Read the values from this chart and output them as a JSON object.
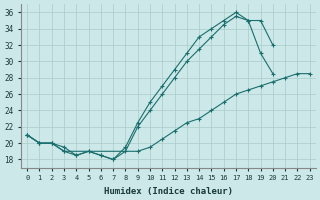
{
  "xlabel": "Humidex (Indice chaleur)",
  "bg_color": "#cce8e8",
  "grid_color": "#aacccc",
  "line_color": "#1a6e6e",
  "xlim": [
    -0.5,
    23.5
  ],
  "ylim": [
    17,
    37
  ],
  "xticks": [
    0,
    1,
    2,
    3,
    4,
    5,
    6,
    7,
    8,
    9,
    10,
    11,
    12,
    13,
    14,
    15,
    16,
    17,
    18,
    19,
    20,
    21,
    22,
    23
  ],
  "yticks": [
    18,
    20,
    22,
    24,
    26,
    28,
    30,
    32,
    34,
    36
  ],
  "line1_x": [
    0,
    1,
    2,
    3,
    4,
    5,
    6,
    7,
    8,
    9,
    10,
    11,
    12,
    13,
    14,
    15,
    16,
    17,
    18,
    19,
    20
  ],
  "line1_y": [
    21,
    20,
    20,
    19,
    18.5,
    19,
    18.5,
    18,
    19,
    22,
    24,
    26,
    28,
    30,
    31.5,
    33,
    34.5,
    35.5,
    35,
    31,
    28.5
  ],
  "line2_x": [
    0,
    1,
    2,
    3,
    4,
    5,
    6,
    7,
    8,
    9,
    10,
    11,
    12,
    13,
    14,
    15,
    16,
    17,
    18,
    19,
    20
  ],
  "line2_y": [
    21,
    20,
    20,
    19.5,
    18.5,
    19,
    18.5,
    18,
    19.5,
    22.5,
    25,
    27,
    29,
    31,
    33,
    34,
    35,
    36,
    35,
    35,
    32
  ],
  "line3_x": [
    0,
    1,
    2,
    3,
    9,
    10,
    11,
    12,
    13,
    14,
    15,
    16,
    17,
    18,
    19,
    20,
    21,
    22,
    23
  ],
  "line3_y": [
    21,
    20,
    20,
    19,
    19,
    19.5,
    20.5,
    21.5,
    22.5,
    23,
    24,
    25,
    26,
    26.5,
    27,
    27.5,
    28,
    28.5,
    28.5
  ]
}
